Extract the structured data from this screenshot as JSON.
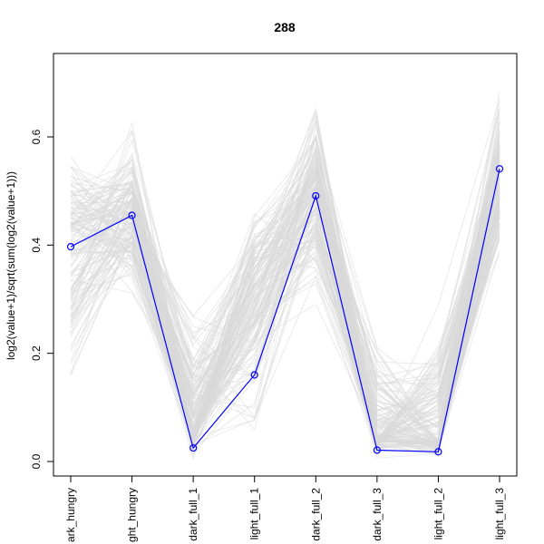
{
  "chart_data": {
    "type": "line",
    "title": "288",
    "xlabel": "",
    "ylabel": "log2(value+1)/sqrt(sum(log2(value+1)))",
    "categories": [
      "dark_hungry",
      "light_hungry",
      "dark_full_1",
      "light_full_1",
      "dark_full_2",
      "dark_full_3",
      "light_full_2",
      "light_full_3"
    ],
    "category_labels_visible": [
      "ark_hungry",
      "ght_hungry",
      "dark_full_1",
      "light_full_1",
      "dark_full_2",
      "dark_full_3",
      "light_full_2",
      "light_full_3"
    ],
    "y_ticks": [
      0.0,
      0.2,
      0.4,
      0.6
    ],
    "y_tick_labels": [
      "0.0",
      "0.2",
      "0.4",
      "0.6"
    ],
    "ylim": [
      -0.03,
      0.75
    ],
    "highlight_series": {
      "values": [
        0.397,
        0.455,
        0.025,
        0.16,
        0.491,
        0.021,
        0.018,
        0.541
      ],
      "color": "#0000FF"
    },
    "background_series": {
      "color": "#D9D9D9",
      "typical_values": [
        0.42,
        0.46,
        0.06,
        0.3,
        0.5,
        0.05,
        0.04,
        0.53
      ],
      "min_values": [
        0.08,
        0.27,
        0.0,
        0.0,
        0.25,
        0.0,
        0.0,
        0.33
      ],
      "max_values": [
        0.61,
        0.67,
        0.32,
        0.54,
        0.69,
        0.3,
        0.31,
        0.72
      ],
      "line_count": 150
    },
    "grid": false,
    "legend": "none"
  }
}
